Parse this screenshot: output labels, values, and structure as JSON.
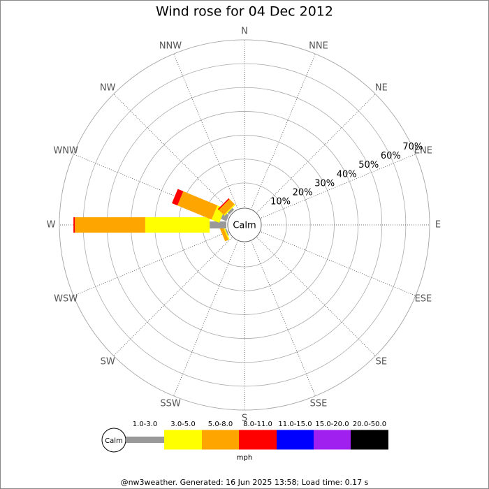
{
  "chart_data": {
    "type": "windrose",
    "title": "Wind rose for 04 Dec 2012",
    "calm_label": "Calm",
    "unit": "mph",
    "footer": "@nw3weather. Generated: 16 Jun 2025 13:58; Load time: 0.17 s",
    "categories": [
      "N",
      "NNE",
      "NE",
      "ENE",
      "E",
      "ESE",
      "SE",
      "SSE",
      "S",
      "SSW",
      "SW",
      "WSW",
      "W",
      "WNW",
      "NW",
      "NNW"
    ],
    "rlim": [
      0,
      70
    ],
    "rticks": [
      {
        "value": 10,
        "label": "10%"
      },
      {
        "value": 20,
        "label": "20%"
      },
      {
        "value": 30,
        "label": "30%"
      },
      {
        "value": 40,
        "label": "40%"
      },
      {
        "value": 50,
        "label": "50%"
      },
      {
        "value": 60,
        "label": "60%"
      },
      {
        "value": 70,
        "label": "70%"
      }
    ],
    "series": [
      {
        "name": "1.0-3.0",
        "color": "#999999",
        "values": [
          0,
          0,
          0,
          0,
          0,
          0,
          0,
          0,
          0,
          0,
          0,
          0.5,
          7,
          2.5,
          1,
          0
        ]
      },
      {
        "name": "3.0-5.0",
        "color": "#ffff00",
        "values": [
          0,
          0,
          0,
          0,
          0,
          0,
          0,
          0,
          0,
          0,
          0,
          0.5,
          27,
          3.5,
          0.5,
          0
        ]
      },
      {
        "name": "5.0-8.0",
        "color": "#ffa500",
        "values": [
          0,
          0,
          0,
          0,
          0,
          0,
          0,
          0,
          0,
          0,
          0,
          1.5,
          29.5,
          15.5,
          3,
          0
        ]
      },
      {
        "name": "8.0-11.0",
        "color": "#ff0000",
        "values": [
          0,
          0,
          0,
          0,
          0,
          0,
          0,
          0,
          0,
          0,
          0,
          0,
          0.6,
          2.5,
          0.5,
          0
        ]
      },
      {
        "name": "11.0-15.0",
        "color": "#0000ff",
        "values": [
          0,
          0,
          0,
          0,
          0,
          0,
          0,
          0,
          0,
          0,
          0,
          0,
          0,
          0,
          0,
          0
        ]
      },
      {
        "name": "15.0-20.0",
        "color": "#a020f0",
        "values": [
          0,
          0,
          0,
          0,
          0,
          0,
          0,
          0,
          0,
          0,
          0,
          0,
          0,
          0,
          0,
          0
        ]
      },
      {
        "name": "20.0-50.0",
        "color": "#000000",
        "values": [
          0,
          0,
          0,
          0,
          0,
          0,
          0,
          0,
          0,
          0,
          0,
          0,
          0,
          0,
          0,
          0
        ]
      }
    ]
  }
}
